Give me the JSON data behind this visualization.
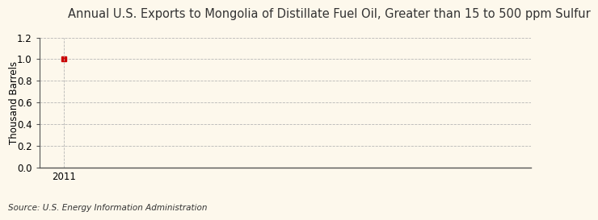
{
  "title": "Annual U.S. Exports to Mongolia of Distillate Fuel Oil, Greater than 15 to 500 ppm Sulfur",
  "ylabel": "Thousand Barrels",
  "source": "Source: U.S. Energy Information Administration",
  "x_data": [
    2011
  ],
  "y_data": [
    1.0
  ],
  "point_color": "#cc0000",
  "ylim": [
    0.0,
    1.2
  ],
  "yticks": [
    0.0,
    0.2,
    0.4,
    0.6,
    0.8,
    1.0,
    1.2
  ],
  "xlim_min": 2010.4,
  "xlim_max": 2022.5,
  "background_color": "#fdf8ec",
  "grid_color": "#b0b0b0",
  "title_fontsize": 10.5,
  "ylabel_fontsize": 8.5,
  "source_fontsize": 7.5,
  "tick_fontsize": 8.5
}
